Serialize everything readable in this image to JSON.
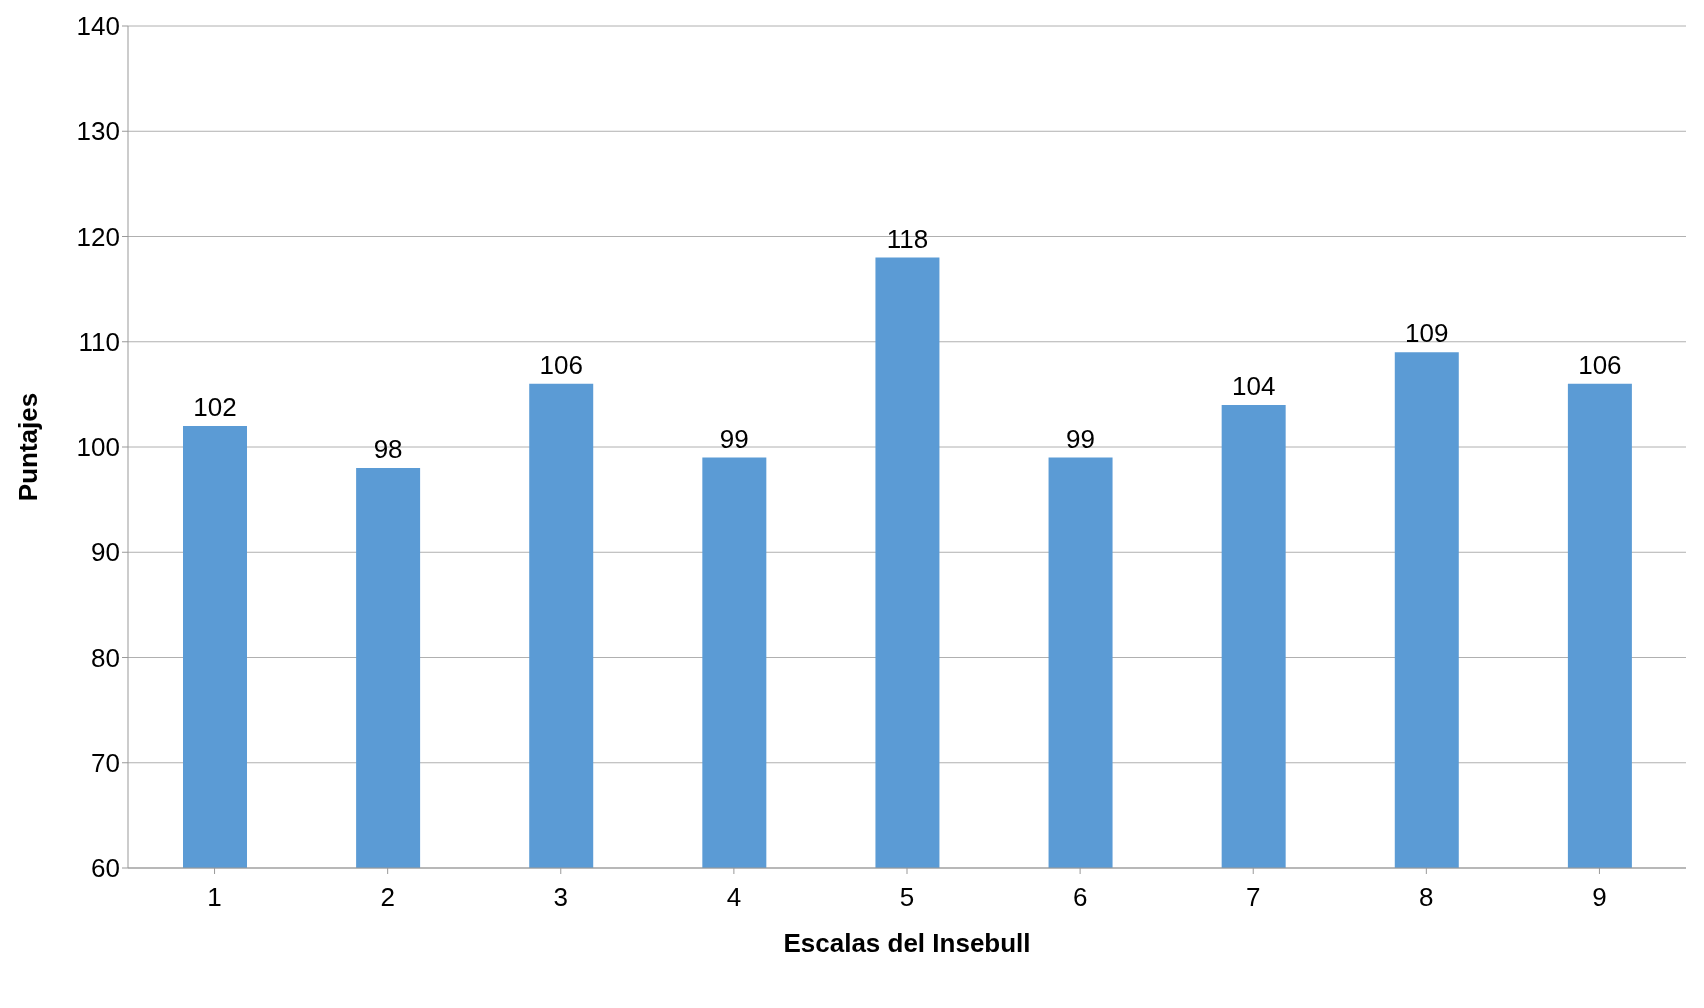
{
  "chart_data": {
    "type": "bar",
    "xlabel": "Escalas del Insebull",
    "ylabel": "Puntajes",
    "categories": [
      "1",
      "2",
      "3",
      "4",
      "5",
      "6",
      "7",
      "8",
      "9"
    ],
    "values": [
      102,
      98,
      106,
      99,
      118,
      99,
      104,
      109,
      106
    ],
    "color": "#5b9bd5",
    "ylim": [
      60,
      140
    ],
    "yticks": [
      60,
      70,
      80,
      90,
      100,
      110,
      120,
      130,
      140
    ],
    "grid": "y",
    "data_labels": true
  }
}
